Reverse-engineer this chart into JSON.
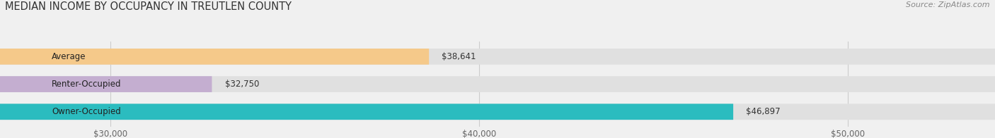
{
  "title": "MEDIAN INCOME BY OCCUPANCY IN TREUTLEN COUNTY",
  "source": "Source: ZipAtlas.com",
  "categories": [
    "Owner-Occupied",
    "Renter-Occupied",
    "Average"
  ],
  "values": [
    46897,
    32750,
    38641
  ],
  "labels": [
    "$46,897",
    "$32,750",
    "$38,641"
  ],
  "bar_colors": [
    "#2bbcbf",
    "#c4aed0",
    "#f5c98a"
  ],
  "background_color": "#f0f0f0",
  "bar_bg_color": "#e0e0e0",
  "xlim_min": 27000,
  "xlim_max": 54000,
  "xticks": [
    30000,
    40000,
    50000
  ],
  "xtick_labels": [
    "$30,000",
    "$40,000",
    "$50,000"
  ],
  "title_fontsize": 10.5,
  "source_fontsize": 8,
  "label_fontsize": 8.5,
  "category_fontsize": 8.5,
  "bar_height": 0.58
}
